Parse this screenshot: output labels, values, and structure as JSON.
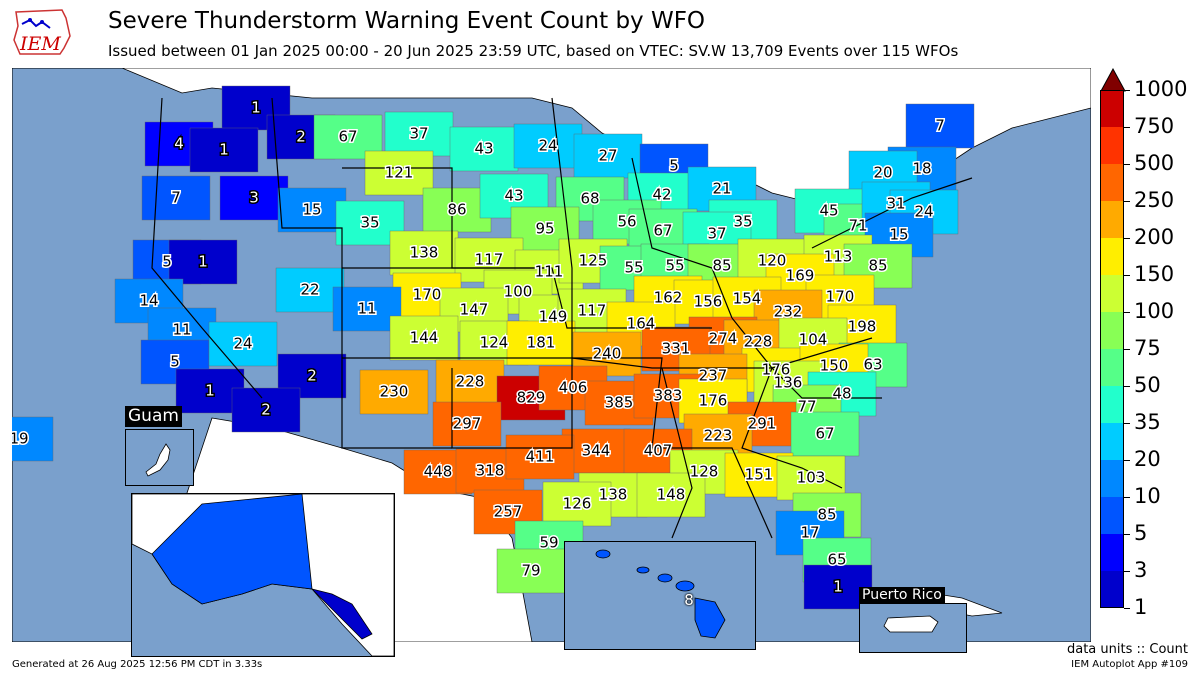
{
  "header": {
    "logo_text": "IEM",
    "title": "Severe Thunderstorm Warning Event Count by WFO",
    "subtitle": "Issued between 01 Jan 2025 00:00 - 20 Jun 2025 23:59 UTC, based on VTEC: SV.W   13,709 Events over 115 WFOs"
  },
  "colors": {
    "ocean": "#7aa0cc",
    "no_data": "#ffffff",
    "border": "#000000",
    "scale": [
      "#0000cc",
      "#0000ff",
      "#0055ff",
      "#0088ff",
      "#00ccff",
      "#22ffcc",
      "#55ff88",
      "#88ff55",
      "#ccff33",
      "#ffee00",
      "#ffaa00",
      "#ff6600",
      "#ff3300",
      "#cc0000"
    ],
    "over": "#800000"
  },
  "legend": {
    "ticks": [
      "1",
      "3",
      "5",
      "10",
      "20",
      "35",
      "50",
      "75",
      "100",
      "150",
      "200",
      "250",
      "500",
      "750",
      "1000"
    ],
    "units": "data units :: Count"
  },
  "insets": {
    "guam": "Guam",
    "puerto_rico": "Puerto Rico"
  },
  "wfo_counts": [
    {
      "value": "1",
      "bin": 0
    },
    {
      "value": "2",
      "bin": 0
    },
    {
      "value": "4",
      "bin": 1
    },
    {
      "value": "1",
      "bin": 0
    },
    {
      "value": "3",
      "bin": 1
    },
    {
      "value": "7",
      "bin": 2
    },
    {
      "value": "67",
      "bin": 6
    },
    {
      "value": "37",
      "bin": 5
    },
    {
      "value": "43",
      "bin": 5
    },
    {
      "value": "24",
      "bin": 4
    },
    {
      "value": "27",
      "bin": 4
    },
    {
      "value": "5",
      "bin": 2
    },
    {
      "value": "7",
      "bin": 2
    },
    {
      "value": "18",
      "bin": 3
    },
    {
      "value": "121",
      "bin": 8
    },
    {
      "value": "15",
      "bin": 3
    },
    {
      "value": "35",
      "bin": 5
    },
    {
      "value": "86",
      "bin": 7
    },
    {
      "value": "43",
      "bin": 5
    },
    {
      "value": "68",
      "bin": 6
    },
    {
      "value": "42",
      "bin": 5
    },
    {
      "value": "21",
      "bin": 4
    },
    {
      "value": "20",
      "bin": 4
    },
    {
      "value": "5",
      "bin": 2
    },
    {
      "value": "1",
      "bin": 0
    },
    {
      "value": "95",
      "bin": 7
    },
    {
      "value": "56",
      "bin": 6
    },
    {
      "value": "67",
      "bin": 6
    },
    {
      "value": "35",
      "bin": 5
    },
    {
      "value": "45",
      "bin": 5
    },
    {
      "value": "71",
      "bin": 6
    },
    {
      "value": "31",
      "bin": 4
    },
    {
      "value": "24",
      "bin": 4
    },
    {
      "value": "14",
      "bin": 3
    },
    {
      "value": "138",
      "bin": 8
    },
    {
      "value": "117",
      "bin": 8
    },
    {
      "value": "37",
      "bin": 5
    },
    {
      "value": "15",
      "bin": 3
    },
    {
      "value": "22",
      "bin": 4
    },
    {
      "value": "111",
      "bin": 8
    },
    {
      "value": "125",
      "bin": 8
    },
    {
      "value": "55",
      "bin": 6
    },
    {
      "value": "55",
      "bin": 6
    },
    {
      "value": "85",
      "bin": 7
    },
    {
      "value": "120",
      "bin": 8
    },
    {
      "value": "113",
      "bin": 8
    },
    {
      "value": "85",
      "bin": 7
    },
    {
      "value": "11",
      "bin": 3
    },
    {
      "value": "170",
      "bin": 9
    },
    {
      "value": "100",
      "bin": 8
    },
    {
      "value": "169",
      "bin": 9
    },
    {
      "value": "11",
      "bin": 3
    },
    {
      "value": "147",
      "bin": 8
    },
    {
      "value": "162",
      "bin": 9
    },
    {
      "value": "156",
      "bin": 9
    },
    {
      "value": "154",
      "bin": 9
    },
    {
      "value": "170",
      "bin": 9
    },
    {
      "value": "149",
      "bin": 8
    },
    {
      "value": "117",
      "bin": 8
    },
    {
      "value": "164",
      "bin": 9
    },
    {
      "value": "232",
      "bin": 10
    },
    {
      "value": "198",
      "bin": 9
    },
    {
      "value": "5",
      "bin": 2
    },
    {
      "value": "144",
      "bin": 8
    },
    {
      "value": "124",
      "bin": 8
    },
    {
      "value": "181",
      "bin": 9
    },
    {
      "value": "24",
      "bin": 4
    },
    {
      "value": "274",
      "bin": 11
    },
    {
      "value": "228",
      "bin": 10
    },
    {
      "value": "104",
      "bin": 8
    },
    {
      "value": "240",
      "bin": 10
    },
    {
      "value": "331",
      "bin": 11
    },
    {
      "value": "63",
      "bin": 6
    },
    {
      "value": "1",
      "bin": 0
    },
    {
      "value": "2",
      "bin": 0
    },
    {
      "value": "230",
      "bin": 10
    },
    {
      "value": "228",
      "bin": 10
    },
    {
      "value": "176",
      "bin": 9
    },
    {
      "value": "150",
      "bin": 9
    },
    {
      "value": "237",
      "bin": 10
    },
    {
      "value": "136",
      "bin": 8
    },
    {
      "value": "829",
      "bin": 13
    },
    {
      "value": "406",
      "bin": 11
    },
    {
      "value": "385",
      "bin": 11
    },
    {
      "value": "383",
      "bin": 11
    },
    {
      "value": "48",
      "bin": 5
    },
    {
      "value": "2",
      "bin": 0
    },
    {
      "value": "176",
      "bin": 9
    },
    {
      "value": "77",
      "bin": 7
    },
    {
      "value": "297",
      "bin": 11
    },
    {
      "value": "291",
      "bin": 11
    },
    {
      "value": "19",
      "bin": 3
    },
    {
      "value": "223",
      "bin": 10
    },
    {
      "value": "67",
      "bin": 6
    },
    {
      "value": "344",
      "bin": 11
    },
    {
      "value": "407",
      "bin": 11
    },
    {
      "value": "448",
      "bin": 11
    },
    {
      "value": "318",
      "bin": 11
    },
    {
      "value": "411",
      "bin": 11
    },
    {
      "value": "128",
      "bin": 8
    },
    {
      "value": "151",
      "bin": 9
    },
    {
      "value": "103",
      "bin": 8
    },
    {
      "value": "138",
      "bin": 8
    },
    {
      "value": "148",
      "bin": 8
    },
    {
      "value": "126",
      "bin": 8
    },
    {
      "value": "257",
      "bin": 11
    },
    {
      "value": "85",
      "bin": 7
    },
    {
      "value": "17",
      "bin": 3
    },
    {
      "value": "59",
      "bin": 6
    },
    {
      "value": "65",
      "bin": 6
    },
    {
      "value": "79",
      "bin": 7
    },
    {
      "value": "1",
      "bin": 0
    },
    {
      "value": "5",
      "bin": 2
    },
    {
      "value": "1",
      "bin": 0
    },
    {
      "value": "8",
      "bin": 2
    }
  ],
  "footer": {
    "generated": "Generated at 26 Aug 2025 12:56 PM CDT in 3.33s",
    "app": "IEM Autoplot App #109"
  }
}
